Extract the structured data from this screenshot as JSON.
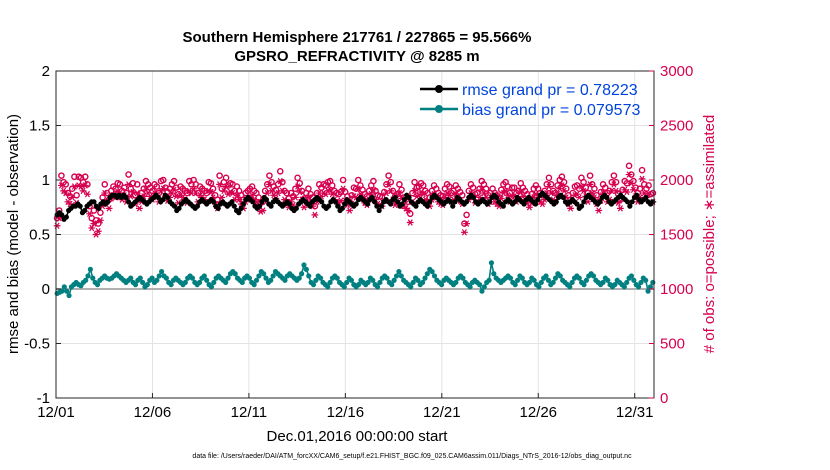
{
  "chart_data": {
    "type": "line",
    "title_line1": "Southern Hemisphere 217761 / 227865 = 95.566%",
    "title_line2": "GPSRO_REFRACTIVITY @ 8285 m",
    "xlabel": "Dec.01,2016 00:00:00 start",
    "ylabel": "rmse and bias (model - observation)",
    "ylabel_right": "# of obs: o=possible; ∗=assimilated",
    "footer": "data file: /Users/raeder/DAI/ATM_forcXX/CAM6_setup/f.e21.FHIST_BGC.f09_025.CAM6assim.011/Diags_NTrS_2016-12/obs_diag_output.nc",
    "x_tick_labels": [
      "12/01",
      "12/06",
      "12/11",
      "12/16",
      "12/21",
      "12/26",
      "12/31"
    ],
    "x_tick_values": [
      1,
      6,
      11,
      16,
      21,
      26,
      31
    ],
    "xlim": [
      1,
      32
    ],
    "ylim": [
      -1,
      2
    ],
    "y_tick_labels": [
      "2",
      "1.5",
      "1",
      "0.5",
      "0",
      "-0.5",
      "-1"
    ],
    "y_tick_values": [
      2,
      1.5,
      1,
      0.5,
      0,
      -0.5,
      -1
    ],
    "ylim_right": [
      0,
      3000
    ],
    "y2_tick_labels": [
      "3000",
      "2500",
      "2000",
      "1500",
      "1000",
      "500",
      "0"
    ],
    "y2_tick_values": [
      3000,
      2500,
      2000,
      1500,
      1000,
      500,
      0
    ],
    "grid": true,
    "legend_position": "top-right",
    "colors": {
      "rmse": "#000000",
      "bias": "#008080",
      "obs": "#d6004f",
      "zero_line": "#b0b0b0"
    },
    "series": [
      {
        "name": "rmse grand pr = 0.78223",
        "axis": "left",
        "values": [
          0.68,
          0.7,
          0.68,
          0.64,
          0.66,
          0.72,
          0.74,
          0.76,
          0.76,
          0.78,
          0.76,
          0.7,
          0.72,
          0.76,
          0.78,
          0.8,
          0.8,
          0.76,
          0.74,
          0.78,
          0.8,
          0.78,
          0.8,
          0.84,
          0.86,
          0.86,
          0.84,
          0.86,
          0.84,
          0.86,
          0.84,
          0.8,
          0.76,
          0.78,
          0.8,
          0.82,
          0.84,
          0.82,
          0.8,
          0.78,
          0.8,
          0.82,
          0.84,
          0.86,
          0.84,
          0.8,
          0.82,
          0.86,
          0.84,
          0.8,
          0.78,
          0.76,
          0.72,
          0.74,
          0.78,
          0.8,
          0.82,
          0.8,
          0.78,
          0.76,
          0.74,
          0.76,
          0.8,
          0.82,
          0.8,
          0.78,
          0.8,
          0.82,
          0.8,
          0.76,
          0.74,
          0.78,
          0.8,
          0.78,
          0.76,
          0.78,
          0.8,
          0.76,
          0.72,
          0.7,
          0.74,
          0.78,
          0.82,
          0.84,
          0.82,
          0.8,
          0.76,
          0.74,
          0.76,
          0.8,
          0.84,
          0.82,
          0.78,
          0.76,
          0.8,
          0.82,
          0.8,
          0.78,
          0.76,
          0.78,
          0.8,
          0.78,
          0.74,
          0.72,
          0.74,
          0.78,
          0.8,
          0.82,
          0.8,
          0.78,
          0.76,
          0.8,
          0.82,
          0.84,
          0.82,
          0.8,
          0.76,
          0.74,
          0.76,
          0.8,
          0.82,
          0.8,
          0.76,
          0.72,
          0.74,
          0.78,
          0.82,
          0.8,
          0.78,
          0.76,
          0.78,
          0.82,
          0.84,
          0.82,
          0.8,
          0.78,
          0.82,
          0.84,
          0.8,
          0.76,
          0.72,
          0.76,
          0.8,
          0.82,
          0.8,
          0.78,
          0.82,
          0.84,
          0.8,
          0.76,
          0.78,
          0.82,
          0.86,
          0.84,
          0.8,
          0.78,
          0.76,
          0.8,
          0.82,
          0.8,
          0.78,
          0.76,
          0.8,
          0.84,
          0.86,
          0.84,
          0.82,
          0.8,
          0.78,
          0.8,
          0.82,
          0.8,
          0.76,
          0.8,
          0.84,
          0.82,
          0.8,
          0.78,
          0.8,
          0.84,
          0.86,
          0.84,
          0.8,
          0.78,
          0.8,
          0.82,
          0.8,
          0.78,
          0.8,
          0.84,
          0.86,
          0.84,
          0.8,
          0.78,
          0.76,
          0.8,
          0.82,
          0.8,
          0.78,
          0.8,
          0.84,
          0.82,
          0.8,
          0.78,
          0.82,
          0.84,
          0.82,
          0.8,
          0.78,
          0.82,
          0.86,
          0.88,
          0.86,
          0.84,
          0.82,
          0.8,
          0.78,
          0.8,
          0.84,
          0.86,
          0.84,
          0.8,
          0.78,
          0.8,
          0.82,
          0.8,
          0.78,
          0.74,
          0.76,
          0.8,
          0.84,
          0.86,
          0.84,
          0.82,
          0.8,
          0.78,
          0.8,
          0.84,
          0.86,
          0.84,
          0.8,
          0.78,
          0.8,
          0.82,
          0.84,
          0.86,
          0.84,
          0.82,
          0.8,
          0.76,
          0.8,
          0.84,
          0.86,
          0.82,
          0.8,
          0.82,
          0.84,
          0.8,
          0.78,
          0.8
        ]
      },
      {
        "name": "bias grand pr = 0.079573",
        "axis": "left",
        "values": [
          -0.04,
          -0.03,
          -0.02,
          0.02,
          -0.02,
          -0.06,
          0.02,
          0.04,
          0.06,
          0.04,
          0.03,
          0.06,
          0.08,
          0.12,
          0.18,
          0.1,
          0.06,
          0.04,
          0.08,
          0.1,
          0.12,
          0.1,
          0.09,
          0.1,
          0.12,
          0.14,
          0.12,
          0.1,
          0.08,
          0.06,
          0.08,
          0.1,
          0.06,
          0.04,
          0.08,
          0.1,
          0.06,
          0.02,
          0.04,
          0.08,
          0.1,
          0.06,
          0.08,
          0.12,
          0.16,
          0.12,
          0.1,
          0.06,
          0.04,
          0.08,
          0.1,
          0.08,
          0.06,
          0.04,
          0.06,
          0.1,
          0.12,
          0.1,
          0.06,
          0.04,
          0.06,
          0.1,
          0.12,
          0.08,
          0.04,
          0.02,
          0.06,
          0.1,
          0.12,
          0.1,
          0.08,
          0.06,
          0.1,
          0.14,
          0.16,
          0.14,
          0.1,
          0.08,
          0.06,
          0.1,
          0.12,
          0.1,
          0.06,
          0.04,
          0.08,
          0.12,
          0.16,
          0.14,
          0.1,
          0.06,
          0.08,
          0.12,
          0.16,
          0.14,
          0.12,
          0.1,
          0.08,
          0.12,
          0.14,
          0.12,
          0.1,
          0.08,
          0.1,
          0.14,
          0.22,
          0.18,
          0.12,
          0.06,
          0.04,
          0.08,
          0.12,
          0.1,
          0.06,
          0.04,
          0.02,
          0.06,
          0.1,
          0.12,
          0.1,
          0.06,
          0.04,
          0.02,
          0.06,
          0.1,
          0.08,
          0.04,
          0.02,
          0.04,
          0.08,
          0.06,
          0.04,
          0.06,
          0.1,
          0.08,
          0.04,
          0.02,
          0.06,
          0.1,
          0.12,
          0.1,
          0.06,
          0.04,
          0.08,
          0.12,
          0.16,
          0.12,
          0.08,
          0.06,
          0.04,
          0.02,
          0.06,
          0.1,
          0.08,
          0.04,
          0.06,
          0.1,
          0.14,
          0.18,
          0.16,
          0.12,
          0.08,
          0.06,
          0.04,
          0.08,
          0.1,
          0.08,
          0.06,
          0.04,
          0.06,
          0.1,
          0.12,
          0.1,
          0.06,
          0.04,
          0.02,
          0.06,
          0.08,
          0.06,
          0.04,
          -0.02,
          0.02,
          0.06,
          0.08,
          0.24,
          0.14,
          0.1,
          0.08,
          0.06,
          0.08,
          0.1,
          0.12,
          0.1,
          0.06,
          0.04,
          0.08,
          0.12,
          0.1,
          0.06,
          0.04,
          0.06,
          0.1,
          0.08,
          0.04,
          0.02,
          0.06,
          0.1,
          0.12,
          0.08,
          0.04,
          0.06,
          0.1,
          0.14,
          0.12,
          0.08,
          0.06,
          0.04,
          0.02,
          0.06,
          0.1,
          0.12,
          0.1,
          0.06,
          0.04,
          0.08,
          0.12,
          0.14,
          0.12,
          0.08,
          0.06,
          0.04,
          0.06,
          0.1,
          0.08,
          0.04,
          0.02,
          0.04,
          0.08,
          0.06,
          0.04,
          0.02,
          0.06,
          0.1,
          0.12,
          0.08,
          0.04,
          0.02,
          0.06,
          0.1,
          0.08,
          -0.02,
          0.02,
          0.06
        ]
      },
      {
        "name": "possible",
        "axis": "right",
        "marker": "o",
        "values": [
          1650,
          1720,
          2040,
          1980,
          1960,
          1880,
          1850,
          1920,
          2030,
          1860,
          2030,
          2020,
          1980,
          2030,
          1960,
          1760,
          1650,
          1720,
          1630,
          1600,
          1700,
          1840,
          1960,
          1880,
          1820,
          1900,
          1940,
          1920,
          1970,
          1960,
          1900,
          1930,
          1880,
          2050,
          1920,
          1970,
          1860,
          1960,
          1820,
          1880,
          1920,
          1990,
          1960,
          1930,
          1900,
          1960,
          1940,
          1880,
          1990,
          2000,
          1930,
          1890,
          1920,
          1960,
          1990,
          1930,
          1870,
          1940,
          1920,
          1900,
          1880,
          1990,
          1960,
          2000,
          1960,
          1880,
          1940,
          1920,
          1900,
          1880,
          1980,
          1970,
          1920,
          1860,
          1820,
          2040,
          1920,
          1980,
          2020,
          1950,
          1970,
          1960,
          1900,
          1940,
          1900,
          1860,
          1820,
          1880,
          1900,
          1920,
          1940,
          1900,
          1880,
          1840,
          1790,
          1800,
          1900,
          1960,
          2040,
          1980,
          1940,
          1910,
          1960,
          2080,
          1980,
          1900,
          1880,
          1830,
          1880,
          1850,
          1920,
          2020,
          1970,
          1900,
          1830,
          1880,
          1920,
          1870,
          1840,
          1760,
          1880,
          1960,
          1930,
          1960,
          1950,
          1980,
          1990,
          1950,
          1900,
          1880,
          1870,
          1890,
          2000,
          1890,
          1850,
          1800,
          1860,
          1930,
          1920,
          2000,
          1950,
          1910,
          1870,
          1850,
          1900,
          1950,
          1990,
          1900,
          1860,
          1850,
          1840,
          1890,
          1960,
          2040,
          1980,
          1900,
          1850,
          1870,
          1960,
          1910,
          1840,
          1820,
          1800,
          1690,
          1880,
          1980,
          1930,
          1940,
          1970,
          1950,
          1900,
          1880,
          1840,
          1900,
          1950,
          1920,
          1880,
          1860,
          1850,
          1920,
          1960,
          1940,
          1880,
          1900,
          1950,
          1920,
          1890,
          1860,
          1600,
          1680,
          1900,
          1960,
          1930,
          1870,
          1880,
          1920,
          1990,
          1960,
          1920,
          1860,
          1880,
          1920,
          1880,
          1860,
          1840,
          1910,
          1960,
          1980,
          1940,
          1880,
          1930,
          1930,
          1880,
          1900,
          1970,
          1930,
          1900,
          1870,
          1830,
          1870,
          1920,
          1950,
          1920,
          1880,
          1860,
          1900,
          1960,
          2020,
          1960,
          1900,
          1880,
          1950,
          2000,
          2030,
          1980,
          1920,
          1860,
          1820,
          1880,
          1940,
          1950,
          1920,
          2020,
          1980,
          1930,
          1880,
          2040,
          1960,
          1920,
          1860,
          1800,
          1890,
          1960,
          1930,
          1880,
          1900,
          1980,
          2040,
          1980,
          1870,
          1820,
          1910,
          1990,
          1970,
          2130,
          2050,
          1990,
          1930,
          1880,
          1920,
          2090,
          1960,
          1920,
          1950,
          1870,
          1880
        ]
      },
      {
        "name": "assimilated",
        "axis": "right",
        "marker": "*",
        "values": [
          1580,
          1650,
          1950,
          1900,
          1880,
          1800,
          1780,
          1840,
          1940,
          1790,
          1950,
          1940,
          1900,
          1950,
          1870,
          1690,
          1560,
          1600,
          1500,
          1530,
          1630,
          1760,
          1880,
          1800,
          1740,
          1830,
          1860,
          1840,
          1890,
          1880,
          1820,
          1860,
          1800,
          1960,
          1850,
          1890,
          1780,
          1880,
          1740,
          1800,
          1850,
          1910,
          1880,
          1850,
          1820,
          1880,
          1860,
          1800,
          1900,
          1920,
          1850,
          1810,
          1840,
          1880,
          1910,
          1850,
          1790,
          1860,
          1840,
          1820,
          1790,
          1900,
          1880,
          1920,
          1880,
          1800,
          1860,
          1840,
          1820,
          1800,
          1900,
          1890,
          1840,
          1780,
          1740,
          1960,
          1840,
          1900,
          1940,
          1870,
          1890,
          1880,
          1820,
          1860,
          1820,
          1780,
          1740,
          1800,
          1820,
          1840,
          1860,
          1820,
          1800,
          1760,
          1710,
          1720,
          1820,
          1880,
          1960,
          1900,
          1860,
          1830,
          1880,
          1990,
          1900,
          1820,
          1800,
          1750,
          1800,
          1770,
          1840,
          1940,
          1890,
          1820,
          1750,
          1800,
          1840,
          1790,
          1760,
          1680,
          1800,
          1880,
          1850,
          1880,
          1870,
          1900,
          1910,
          1870,
          1820,
          1800,
          1790,
          1810,
          1920,
          1810,
          1770,
          1720,
          1780,
          1850,
          1840,
          1920,
          1870,
          1830,
          1790,
          1770,
          1820,
          1870,
          1910,
          1820,
          1780,
          1770,
          1760,
          1810,
          1880,
          1960,
          1900,
          1820,
          1770,
          1790,
          1880,
          1830,
          1760,
          1740,
          1720,
          1610,
          1800,
          1900,
          1850,
          1860,
          1890,
          1870,
          1820,
          1800,
          1760,
          1820,
          1870,
          1840,
          1800,
          1780,
          1770,
          1840,
          1880,
          1860,
          1800,
          1820,
          1870,
          1840,
          1810,
          1780,
          1520,
          1600,
          1820,
          1880,
          1850,
          1790,
          1800,
          1840,
          1910,
          1880,
          1840,
          1780,
          1800,
          1840,
          1800,
          1780,
          1760,
          1830,
          1880,
          1900,
          1860,
          1800,
          1850,
          1850,
          1800,
          1820,
          1890,
          1850,
          1820,
          1790,
          1750,
          1790,
          1840,
          1870,
          1840,
          1800,
          1780,
          1820,
          1880,
          1940,
          1880,
          1820,
          1800,
          1870,
          1920,
          1950,
          1900,
          1840,
          1780,
          1740,
          1800,
          1860,
          1870,
          1840,
          1940,
          1900,
          1850,
          1800,
          1960,
          1880,
          1840,
          1780,
          1720,
          1810,
          1880,
          1850,
          1800,
          1820,
          1900,
          1960,
          1900,
          1790,
          1740,
          1830,
          1910,
          1890,
          2050,
          1970,
          1910,
          1850,
          1800,
          1840,
          2010,
          1880,
          1840,
          1870,
          1790,
          1800
        ]
      }
    ]
  }
}
